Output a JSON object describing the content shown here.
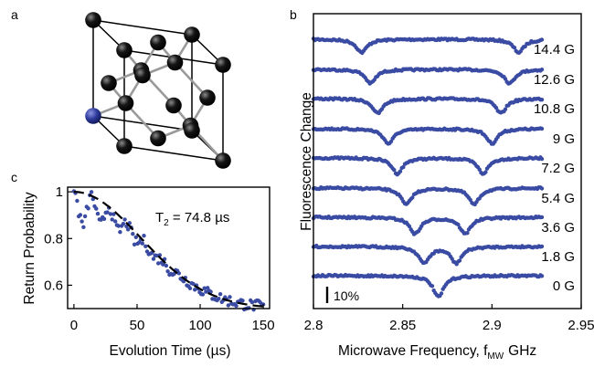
{
  "panel_labels": {
    "a": "a",
    "b": "b",
    "c": "c"
  },
  "colors": {
    "data": "#3a4ba3",
    "fit": "#000000",
    "axes": "#000000",
    "atom": "#151515",
    "bond": "#9a9a9a",
    "vacancy_atom": "#2e3a9c"
  },
  "panel_a": {
    "unit_cell": "diamond",
    "highlighted_atom_color": "#2e3a9c"
  },
  "chart_data": [
    {
      "panel": "b",
      "type": "line",
      "marker": "dots",
      "xlabel_main": "Microwave Frequency, f",
      "xlabel_sub": "MW",
      "xlabel_unit": "GHz",
      "ylabel": "Fluorescence Change",
      "xlim": [
        2.8,
        2.95
      ],
      "xticks": [
        "2.8",
        "2.85",
        "2.9",
        "2.95"
      ],
      "yticks": "none",
      "scale_bar_label": "10%",
      "scale_bar_value": 0.1,
      "series": [
        {
          "name": "14.4 G",
          "dips": [
            2.827,
            2.915
          ],
          "depth": 0.08
        },
        {
          "name": "12.6 G",
          "dips": [
            2.832,
            2.91
          ],
          "depth": 0.085
        },
        {
          "name": "10.8 G",
          "dips": [
            2.836,
            2.905
          ],
          "depth": 0.09
        },
        {
          "name": "9 G",
          "dips": [
            2.842,
            2.9
          ],
          "depth": 0.09
        },
        {
          "name": "7.2 G",
          "dips": [
            2.847,
            2.895
          ],
          "depth": 0.095
        },
        {
          "name": "5.4 G",
          "dips": [
            2.852,
            2.89
          ],
          "depth": 0.1
        },
        {
          "name": "3.6 G",
          "dips": [
            2.857,
            2.885
          ],
          "depth": 0.1
        },
        {
          "name": "1.8 G",
          "dips": [
            2.862,
            2.88
          ],
          "depth": 0.1
        },
        {
          "name": "0 G",
          "dips": [
            2.87
          ],
          "depth": 0.13
        }
      ]
    },
    {
      "panel": "c",
      "type": "scatter",
      "xlabel": "Evolution Time (µs)",
      "ylabel": "Return Probability",
      "xlim": [
        -5,
        155
      ],
      "ylim": [
        0.5,
        1.02
      ],
      "xticks": [
        0,
        50,
        100,
        150
      ],
      "yticks": [
        1,
        0.8,
        0.6
      ],
      "ytick_labels": [
        "1",
        "0.8",
        "0.6"
      ],
      "annotation_main": "T",
      "annotation_sub": "2",
      "annotation_rest": " = 74.8 µs",
      "T2_us": 74.8,
      "fit_model": "0.5 + 0.5*exp(-(t/74.8)^2)",
      "envelope": {
        "baseline": 0.5,
        "amplitude": 0.5,
        "T2": 74.8
      },
      "revivals_period_us": 14
    }
  ]
}
